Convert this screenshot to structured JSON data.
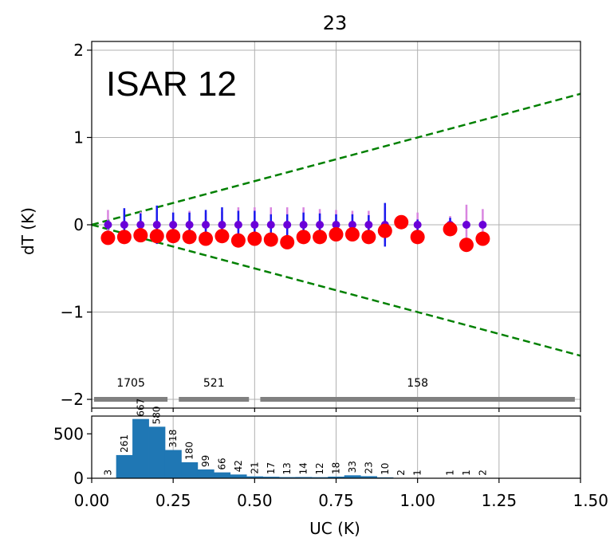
{
  "chart_data": [
    {
      "type": "scatter",
      "title": "23",
      "annotation": "ISAR 12",
      "xlabel": "",
      "ylabel": "dT (K)",
      "xlim": [
        0,
        1.5
      ],
      "ylim": [
        -2.1,
        2.1
      ],
      "yticks": [
        2,
        1,
        0,
        -1,
        -2
      ],
      "ytick_labels": [
        "2",
        "1",
        "0",
        "−1",
        "−2"
      ],
      "grid": true,
      "x": [
        0.05,
        0.1,
        0.15,
        0.2,
        0.25,
        0.3,
        0.35,
        0.4,
        0.45,
        0.5,
        0.55,
        0.6,
        0.65,
        0.7,
        0.75,
        0.8,
        0.85,
        0.9,
        0.95,
        1.0,
        1.1,
        1.15,
        1.2
      ],
      "series": [
        {
          "marker": "large-dot",
          "color": "#ff0000",
          "values": [
            -0.15,
            -0.14,
            -0.12,
            -0.13,
            -0.13,
            -0.14,
            -0.16,
            -0.13,
            -0.18,
            -0.16,
            -0.17,
            -0.2,
            -0.14,
            -0.14,
            -0.11,
            -0.11,
            -0.14,
            -0.07,
            0.03,
            -0.14,
            -0.05,
            -0.23,
            -0.16
          ]
        },
        {
          "marker": "small-dot",
          "color": "#6a00d8",
          "values": [
            0,
            0,
            0,
            0,
            0,
            0,
            0,
            0,
            0,
            0,
            0,
            0,
            0,
            0,
            0,
            0,
            0,
            0,
            null,
            0,
            0,
            0,
            0
          ],
          "error_blue": [
            0.05,
            0.19,
            0.13,
            0.22,
            0.14,
            0.14,
            0.17,
            0.2,
            0.16,
            0.16,
            0.12,
            0.12,
            0.14,
            0.13,
            0.12,
            0.12,
            0.11,
            0.25,
            null,
            0.06,
            0.08,
            0.0,
            0.0
          ],
          "error_violet": [
            0.17,
            0.16,
            0.15,
            0.14,
            0.14,
            0.16,
            0.14,
            0.15,
            0.2,
            0.2,
            0.2,
            0.2,
            0.2,
            0.18,
            0.17,
            0.16,
            0.16,
            0.2,
            null,
            0.14,
            0.1,
            0.23,
            0.18
          ]
        }
      ],
      "reference_lines": [
        {
          "slope": 1,
          "style": "dashed",
          "color": "#008000"
        },
        {
          "slope": -1,
          "style": "dashed",
          "color": "#008000"
        }
      ],
      "ranges": [
        {
          "x0": 0.0,
          "x1": 0.24,
          "label": "1705"
        },
        {
          "x0": 0.26,
          "x1": 0.49,
          "label": "521"
        },
        {
          "x0": 0.51,
          "x1": 1.49,
          "label": "158"
        }
      ],
      "range_color": "#808080"
    },
    {
      "type": "bar",
      "xlabel": "UC (K)",
      "ylabel": "",
      "xlim": [
        0,
        1.5
      ],
      "ylim": [
        0,
        700
      ],
      "xticks": [
        0.0,
        0.25,
        0.5,
        0.75,
        1.0,
        1.25,
        1.5
      ],
      "xtick_labels": [
        "0.00",
        "0.25",
        "0.50",
        "0.75",
        "1.00",
        "1.25",
        "1.50"
      ],
      "yticks": [
        0,
        500
      ],
      "ytick_labels": [
        "0",
        "500"
      ],
      "bin_width": 0.05,
      "bin_left": [
        0.025,
        0.075,
        0.125,
        0.175,
        0.225,
        0.275,
        0.325,
        0.375,
        0.425,
        0.475,
        0.525,
        0.575,
        0.625,
        0.675,
        0.725,
        0.775,
        0.825,
        0.875,
        0.925,
        0.975,
        1.025,
        1.075,
        1.125,
        1.175
      ],
      "values": [
        3,
        261,
        667,
        580,
        318,
        180,
        99,
        66,
        42,
        21,
        17,
        13,
        14,
        12,
        18,
        33,
        23,
        10,
        2,
        1,
        0,
        1,
        1,
        2
      ],
      "bar_labels": [
        "3",
        "261",
        "667",
        "580",
        "318",
        "180",
        "99",
        "66",
        "42",
        "21",
        "17",
        "13",
        "14",
        "12",
        "18",
        "33",
        "23",
        "10",
        "2",
        "1",
        "",
        "1",
        "1",
        "2"
      ],
      "color": "#1f77b4"
    }
  ]
}
